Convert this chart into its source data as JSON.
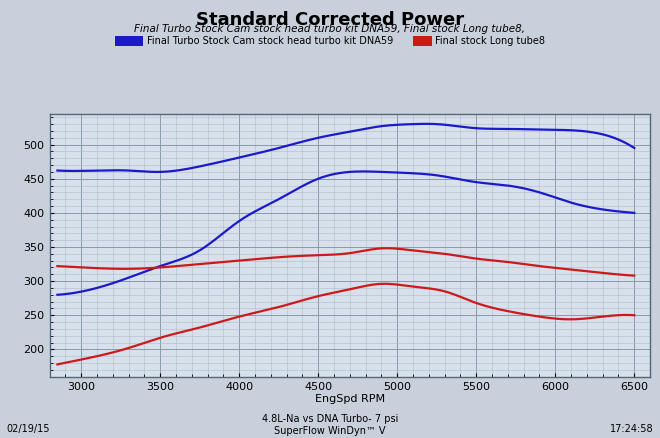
{
  "title": "Standard Corrected Power",
  "subtitle": "Final Turbo Stock Cam stock head turbo kit DNA59, Final stock Long tube8,",
  "legend_blue_label": "Final Turbo Stock Cam stock head turbo kit DNA59",
  "legend_red_label": "Final stock Long tube8",
  "xlabel": "EngSpd RPM",
  "footnote_left": "02/19/15",
  "footnote_center": "4.8L-Na vs DNA Turbo- 7 psi\nSuperFlow WinDyn™ V",
  "footnote_right": "17:24:58",
  "ylim": [
    160,
    545
  ],
  "yticks": [
    200,
    250,
    300,
    350,
    400,
    450,
    500
  ],
  "xlim": [
    2800,
    6600
  ],
  "xticks": [
    3000,
    3500,
    4000,
    4500,
    5000,
    5500,
    6000,
    6500
  ],
  "bg_color": "#c8d0dc",
  "plot_bg": "#d8e0ec",
  "blue_hp_x": [
    2850,
    3100,
    3300,
    3500,
    3750,
    4000,
    4250,
    4500,
    4700,
    4900,
    5100,
    5250,
    5500,
    5700,
    5900,
    6100,
    6300,
    6500
  ],
  "blue_hp_y": [
    462,
    462,
    462,
    460,
    468,
    481,
    495,
    510,
    519,
    527,
    530,
    530,
    524,
    523,
    522,
    521,
    515,
    495
  ],
  "blue_tq_x": [
    2850,
    3100,
    3300,
    3500,
    3750,
    4000,
    4250,
    4500,
    4700,
    4900,
    5100,
    5250,
    5500,
    5700,
    5900,
    6100,
    6300,
    6500
  ],
  "blue_tq_y": [
    280,
    290,
    305,
    322,
    345,
    388,
    420,
    450,
    460,
    460,
    458,
    455,
    445,
    440,
    430,
    415,
    405,
    400
  ],
  "red_hp_x": [
    2850,
    3100,
    3300,
    3500,
    3750,
    4000,
    4250,
    4500,
    4700,
    4900,
    5100,
    5300,
    5500,
    5700,
    5900,
    6100,
    6300,
    6500
  ],
  "red_hp_y": [
    322,
    319,
    318,
    320,
    325,
    330,
    335,
    338,
    341,
    348,
    345,
    340,
    333,
    328,
    322,
    317,
    312,
    308
  ],
  "red_tq_x": [
    2850,
    3100,
    3300,
    3500,
    3750,
    4000,
    4250,
    4500,
    4700,
    4900,
    5100,
    5300,
    5500,
    5700,
    5900,
    6100,
    6300,
    6500
  ],
  "red_tq_y": [
    178,
    190,
    202,
    217,
    232,
    248,
    262,
    278,
    288,
    296,
    292,
    285,
    268,
    256,
    248,
    244,
    248,
    250
  ],
  "blue_color": "#1a1acc",
  "red_color": "#cc1a1a",
  "line_width": 1.6,
  "grid_major_color": "#8899aa",
  "grid_minor_color": "#b0bcc8",
  "title_fontsize": 13,
  "subtitle_fontsize": 7.5,
  "label_fontsize": 8,
  "tick_fontsize": 8,
  "footnote_fontsize": 7
}
